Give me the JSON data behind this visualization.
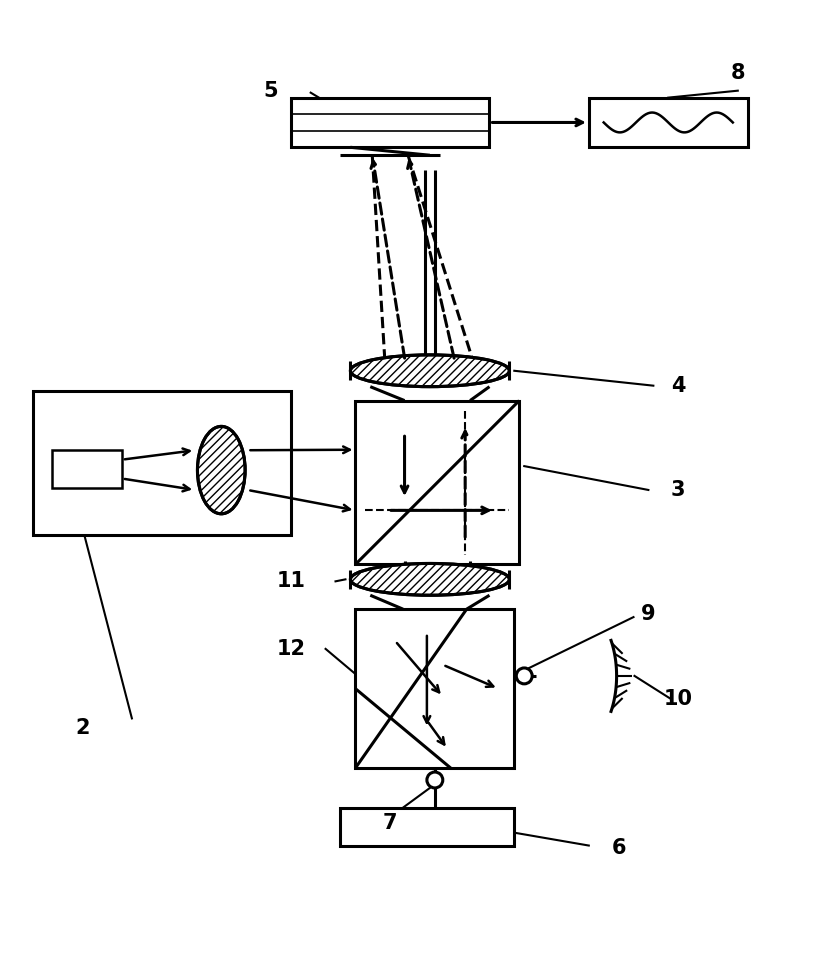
{
  "bg_color": "#ffffff",
  "line_color": "#000000",
  "lw": 2.2,
  "fig_width": 8.23,
  "fig_height": 9.69,
  "dpi": 100
}
